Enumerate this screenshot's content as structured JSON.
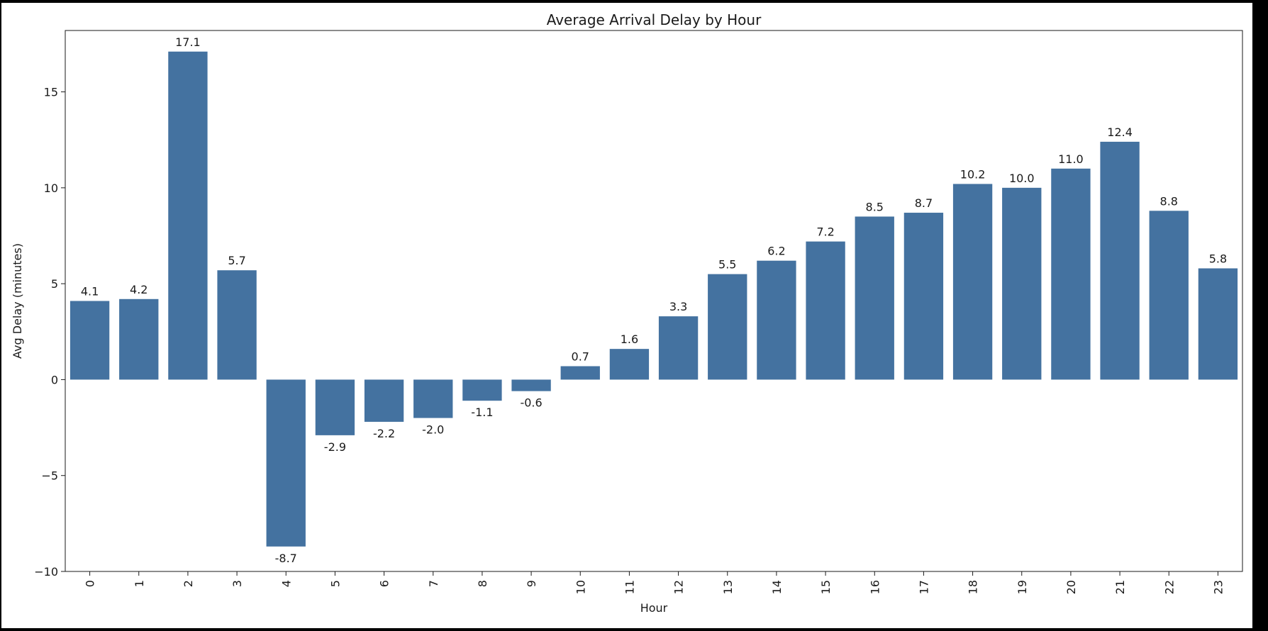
{
  "chart_data": {
    "type": "bar",
    "title": "Average Arrival Delay by Hour",
    "xlabel": "Hour",
    "ylabel": "Avg Delay (minutes)",
    "categories": [
      "0",
      "1",
      "2",
      "3",
      "4",
      "5",
      "6",
      "7",
      "8",
      "9",
      "10",
      "11",
      "12",
      "13",
      "14",
      "15",
      "16",
      "17",
      "18",
      "19",
      "20",
      "21",
      "22",
      "23"
    ],
    "values": [
      4.1,
      4.2,
      17.1,
      5.7,
      -8.7,
      -2.9,
      -2.2,
      -2.0,
      -1.1,
      -0.6,
      0.7,
      1.6,
      3.3,
      5.5,
      6.2,
      7.2,
      8.5,
      8.7,
      10.2,
      10.0,
      11.0,
      12.4,
      8.8,
      5.8
    ],
    "data_labels": [
      "4.1",
      "4.2",
      "17.1",
      "5.7",
      "-8.7",
      "-2.9",
      "-2.2",
      "-2.0",
      "-1.1",
      "-0.6",
      "0.7",
      "1.6",
      "3.3",
      "5.5",
      "6.2",
      "7.2",
      "8.5",
      "8.7",
      "10.2",
      "10.0",
      "11.0",
      "12.4",
      "8.8",
      "5.8"
    ],
    "ylim": [
      -10,
      18.2
    ],
    "yticks": [
      -10,
      -5,
      0,
      5,
      10,
      15
    ],
    "ytick_labels": [
      "−10",
      "−5",
      "0",
      "5",
      "10",
      "15"
    ],
    "grid": false,
    "bar_color": "#4472a0"
  }
}
